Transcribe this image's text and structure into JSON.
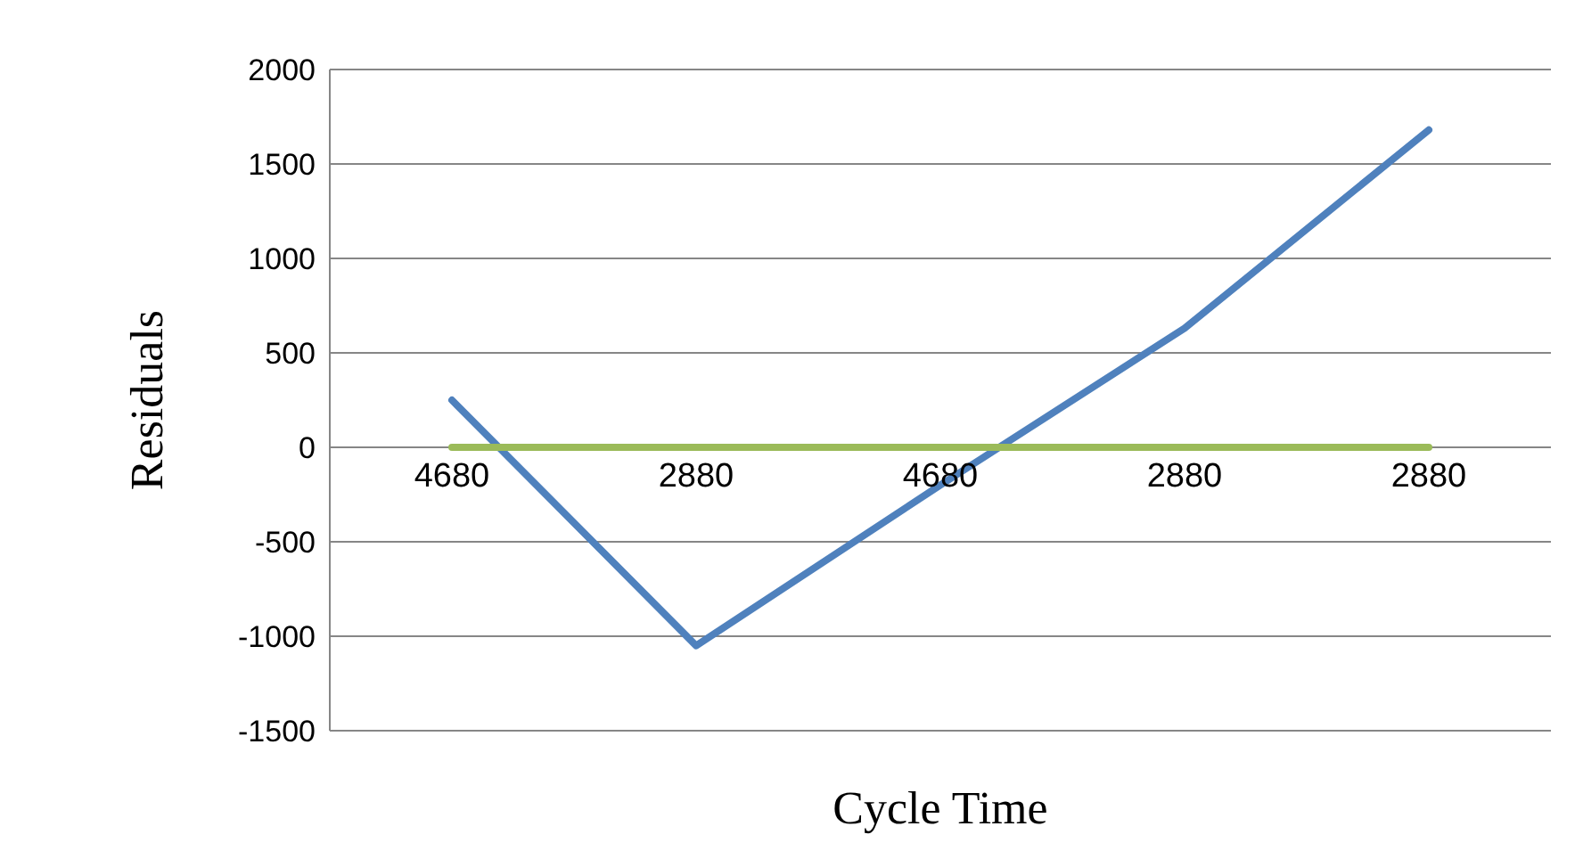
{
  "chart_data": {
    "type": "line",
    "xlabel": "Cycle Time",
    "ylabel": "Residuals",
    "categories": [
      "4680",
      "2880",
      "4680",
      "2880",
      "2880"
    ],
    "series": [
      {
        "color": "#4f81bd",
        "values": [
          250,
          -1050,
          -200,
          630,
          1680
        ]
      },
      {
        "color": "#9bbb59",
        "values": [
          0,
          0,
          0,
          0,
          0
        ]
      }
    ],
    "ylim": [
      -1500,
      2000
    ],
    "yticks": [
      -1500,
      -1000,
      -500,
      0,
      500,
      1000,
      1500,
      2000
    ],
    "grid": "y",
    "legend": false,
    "marker": "none",
    "line_style": "solid"
  }
}
